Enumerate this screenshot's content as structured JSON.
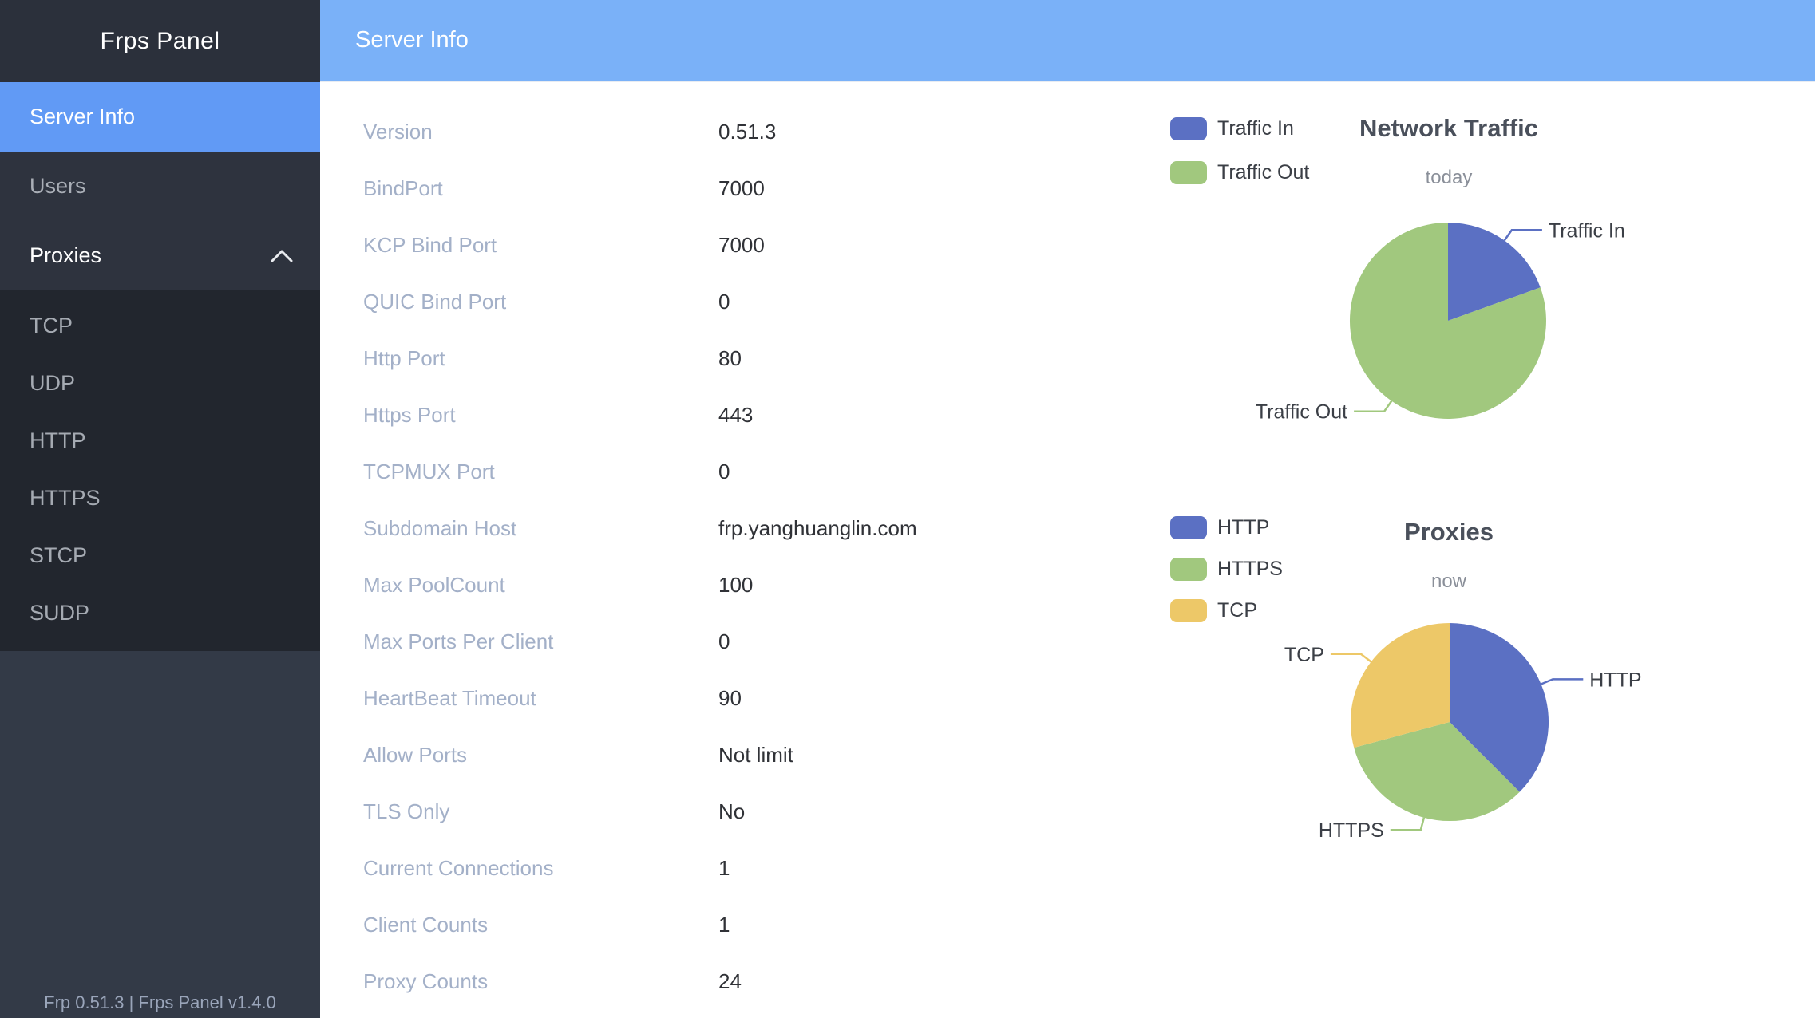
{
  "app": {
    "brand": "Frps Panel",
    "footer": "Frp 0.51.3 | Frps Panel v1.4.0"
  },
  "header": {
    "title": "Server Info"
  },
  "sidebar": {
    "items": [
      {
        "label": "Server Info",
        "active": true
      },
      {
        "label": "Users",
        "active": false
      },
      {
        "label": "Proxies",
        "active": false,
        "expanded": true,
        "icon": "chevron-up-icon"
      }
    ],
    "submenu": [
      "TCP",
      "UDP",
      "HTTP",
      "HTTPS",
      "STCP",
      "SUDP"
    ]
  },
  "info": {
    "rows": [
      {
        "label": "Version",
        "value": "0.51.3"
      },
      {
        "label": "BindPort",
        "value": "7000"
      },
      {
        "label": "KCP Bind Port",
        "value": "7000"
      },
      {
        "label": "QUIC Bind Port",
        "value": "0"
      },
      {
        "label": "Http Port",
        "value": "80"
      },
      {
        "label": "Https Port",
        "value": "443"
      },
      {
        "label": "TCPMUX Port",
        "value": "0"
      },
      {
        "label": "Subdomain Host",
        "value": "frp.yanghuanglin.com"
      },
      {
        "label": "Max PoolCount",
        "value": "100"
      },
      {
        "label": "Max Ports Per Client",
        "value": "0"
      },
      {
        "label": "HeartBeat Timeout",
        "value": "90"
      },
      {
        "label": "Allow Ports",
        "value": "Not limit"
      },
      {
        "label": "TLS Only",
        "value": "No"
      },
      {
        "label": "Current Connections",
        "value": "1"
      },
      {
        "label": "Client Counts",
        "value": "1"
      },
      {
        "label": "Proxy Counts",
        "value": "24"
      }
    ]
  },
  "chart_data": [
    {
      "type": "pie",
      "title": "Network Traffic",
      "subtitle": "today",
      "legend_position": "left",
      "labels": "outside",
      "value_unit": "percent (estimated from slice angles, no numeric labels shown)",
      "slices": [
        {
          "name": "Traffic In",
          "value": 19.5,
          "color": "#5B70C3"
        },
        {
          "name": "Traffic Out",
          "value": 80.5,
          "color": "#A1C87E"
        }
      ]
    },
    {
      "type": "pie",
      "title": "Proxies",
      "subtitle": "now",
      "legend_position": "left",
      "labels": "outside",
      "value_unit": "proxy counts (sum matches Proxy Counts = 24)",
      "slices": [
        {
          "name": "HTTP",
          "value": 9,
          "color": "#5B70C3"
        },
        {
          "name": "HTTPS",
          "value": 8,
          "color": "#A1C87E"
        },
        {
          "name": "TCP",
          "value": 7,
          "color": "#EDC868"
        }
      ]
    }
  ],
  "colors": {
    "header_bg": "#7AB1F8",
    "sidebar_active_bg": "#619AF5",
    "sidebar_brand_bg": "#2B303B",
    "sidebar_menu_bg": "#2E333E",
    "sidebar_submenu_bg": "#22262E",
    "sidebar_lower_bg": "#333A47",
    "series_blue": "#5B70C3",
    "series_green": "#A1C87E",
    "series_yellow": "#EDC868"
  }
}
